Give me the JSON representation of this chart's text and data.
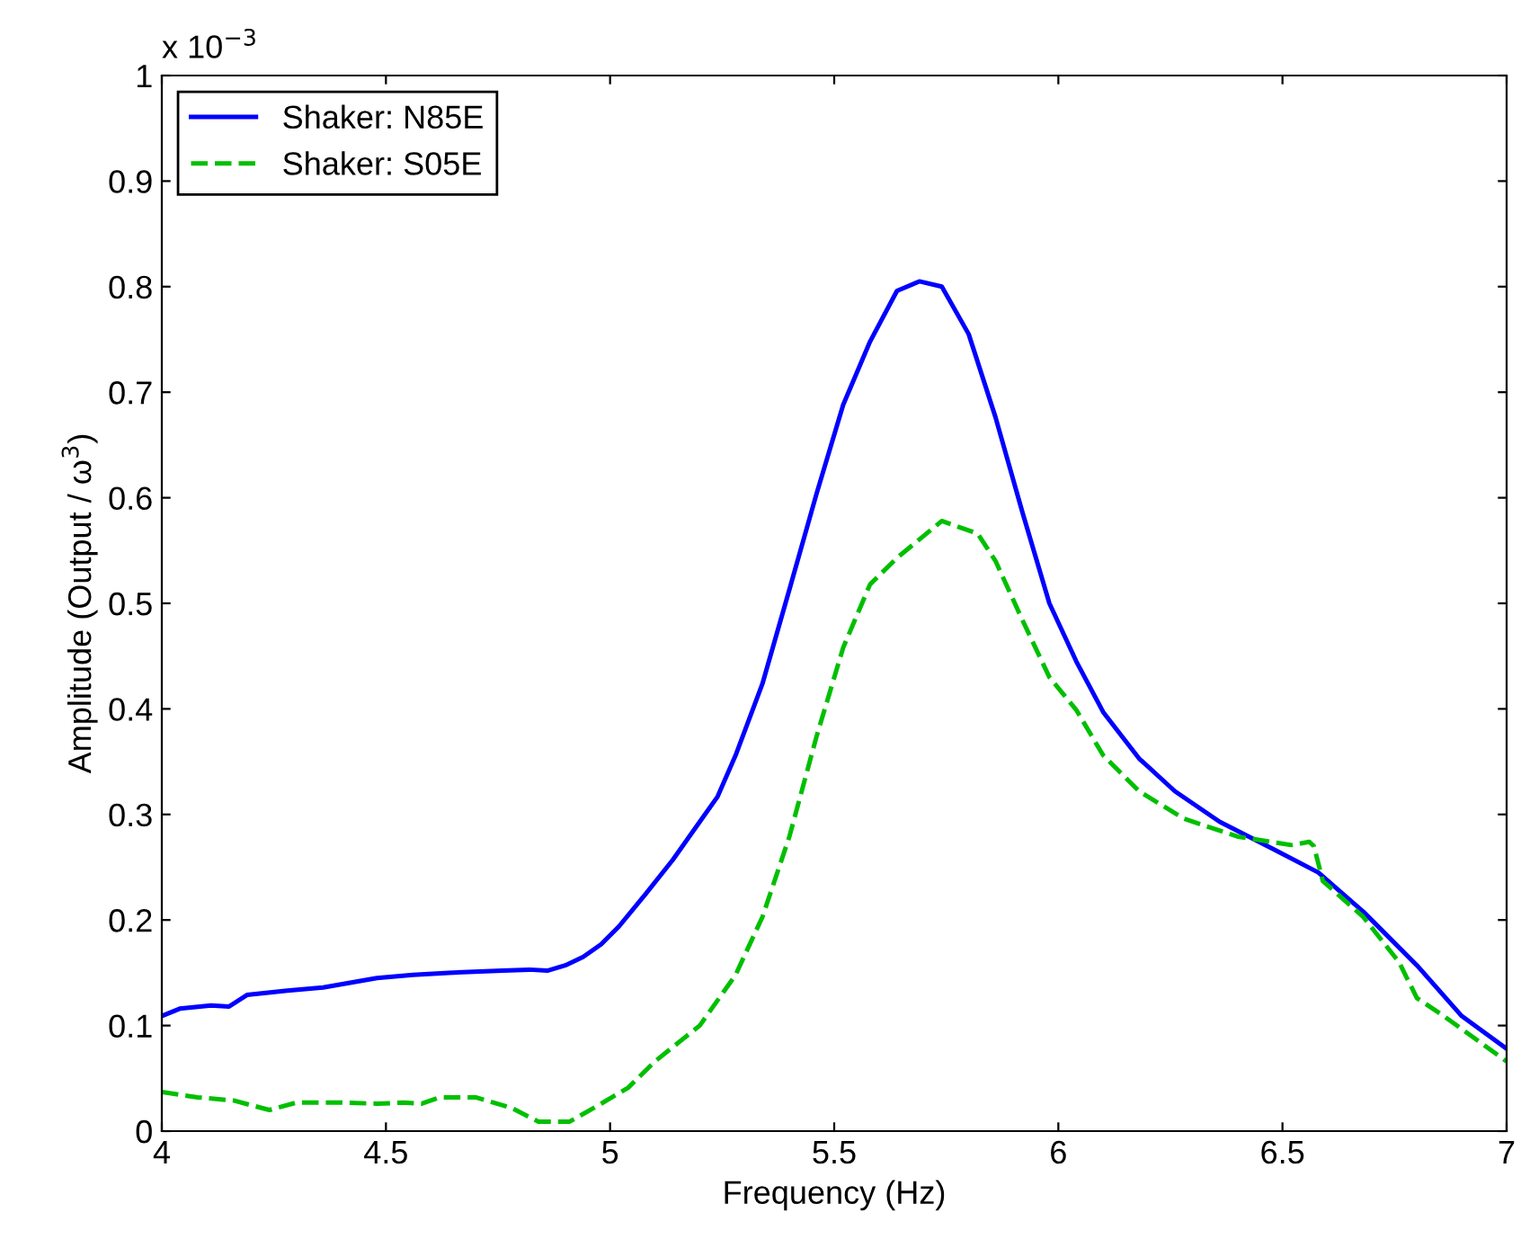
{
  "chart_data": {
    "type": "line",
    "xlabel": "Frequency (Hz)",
    "ylabel": "Amplitude (Output / ω$^{3}$)",
    "annotations": [
      "x 10$^{−3}$"
    ],
    "xlim": [
      4,
      7
    ],
    "xticks": [
      4,
      4.5,
      5,
      5.5,
      6,
      6.5,
      7
    ],
    "ylim": [
      0,
      1
    ],
    "yticks": [
      0,
      0.1,
      0.2,
      0.3,
      0.4,
      0.5,
      0.6,
      0.7,
      0.8,
      0.9,
      1
    ],
    "grid": false,
    "legend": "top left",
    "series": [
      {
        "name": "Shaker: N85E",
        "color": "#0000ff",
        "line_style": "solid",
        "x": [
          4.0,
          4.04,
          4.11,
          4.15,
          4.19,
          4.28,
          4.36,
          4.48,
          4.56,
          4.64,
          4.76,
          4.82,
          4.86,
          4.9,
          4.94,
          4.98,
          5.02,
          5.08,
          5.14,
          5.2,
          5.24,
          5.28,
          5.34,
          5.4,
          5.46,
          5.52,
          5.58,
          5.64,
          5.69,
          5.74,
          5.8,
          5.86,
          5.92,
          5.98,
          6.04,
          6.1,
          6.18,
          6.26,
          6.36,
          6.48,
          6.58,
          6.68,
          6.8,
          6.9,
          7.0
        ],
        "values": [
          0.109,
          0.116,
          0.119,
          0.118,
          0.129,
          0.133,
          0.136,
          0.145,
          0.148,
          0.15,
          0.152,
          0.153,
          0.152,
          0.157,
          0.165,
          0.177,
          0.194,
          0.225,
          0.257,
          0.293,
          0.317,
          0.356,
          0.424,
          0.513,
          0.603,
          0.688,
          0.748,
          0.796,
          0.805,
          0.8,
          0.755,
          0.676,
          0.586,
          0.5,
          0.445,
          0.397,
          0.353,
          0.322,
          0.293,
          0.267,
          0.245,
          0.208,
          0.157,
          0.109,
          0.078
        ]
      },
      {
        "name": "Shaker: S05E",
        "color": "#00bf00",
        "line_style": "dashed",
        "x": [
          4.0,
          4.08,
          4.16,
          4.24,
          4.3,
          4.4,
          4.48,
          4.54,
          4.58,
          4.62,
          4.7,
          4.78,
          4.84,
          4.91,
          4.98,
          5.04,
          5.1,
          5.2,
          5.28,
          5.34,
          5.4,
          5.46,
          5.52,
          5.58,
          5.64,
          5.7,
          5.74,
          5.82,
          5.86,
          5.92,
          5.98,
          6.04,
          6.1,
          6.18,
          6.28,
          6.4,
          6.52,
          6.56,
          6.57,
          6.59,
          6.68,
          6.76,
          6.8,
          6.86,
          7.0
        ],
        "values": [
          0.037,
          0.032,
          0.029,
          0.02,
          0.027,
          0.027,
          0.026,
          0.027,
          0.026,
          0.032,
          0.032,
          0.022,
          0.009,
          0.009,
          0.026,
          0.041,
          0.066,
          0.1,
          0.148,
          0.203,
          0.279,
          0.373,
          0.458,
          0.518,
          0.543,
          0.564,
          0.578,
          0.566,
          0.54,
          0.484,
          0.43,
          0.399,
          0.356,
          0.322,
          0.296,
          0.279,
          0.271,
          0.274,
          0.27,
          0.237,
          0.203,
          0.16,
          0.126,
          0.109,
          0.066
        ]
      }
    ]
  }
}
